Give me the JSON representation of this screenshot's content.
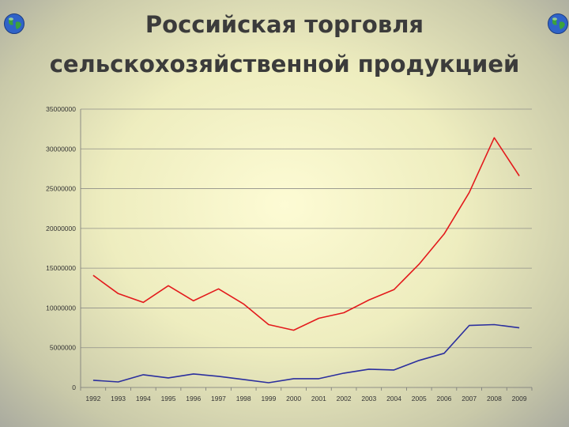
{
  "title": {
    "line1": "Российская торговля",
    "line2": "сельскохозяйственной продукцией"
  },
  "icons": {
    "left": "globe-icon",
    "right": "globe-icon"
  },
  "colors": {
    "series_red": "#e31a1c",
    "series_blue": "#2b2f9e"
  },
  "chart_data": {
    "type": "line",
    "title": "",
    "xlabel": "",
    "ylabel": "",
    "ylim": [
      0,
      35000000
    ],
    "grid": true,
    "legend": "none",
    "x": [
      "1992",
      "1993",
      "1994",
      "1995",
      "1996",
      "1997",
      "1998",
      "1999",
      "2000",
      "2001",
      "2002",
      "2003",
      "2004",
      "2005",
      "2006",
      "2007",
      "2008",
      "2009"
    ],
    "yticks": [
      "0",
      "5000000",
      "10000000",
      "15000000",
      "20000000",
      "25000000",
      "30000000",
      "35000000"
    ],
    "series": [
      {
        "color": "#e31a1c",
        "values": [
          14100000,
          11800000,
          10700000,
          12800000,
          10900000,
          12400000,
          10500000,
          7900000,
          7200000,
          8700000,
          9400000,
          11000000,
          12300000,
          15500000,
          19300000,
          24500000,
          31400000,
          26600000
        ]
      },
      {
        "color": "#2b2f9e",
        "values": [
          900000,
          700000,
          1600000,
          1200000,
          1700000,
          1400000,
          1000000,
          600000,
          1100000,
          1100000,
          1800000,
          2300000,
          2200000,
          3400000,
          4300000,
          7800000,
          7900000,
          7500000
        ]
      }
    ]
  }
}
